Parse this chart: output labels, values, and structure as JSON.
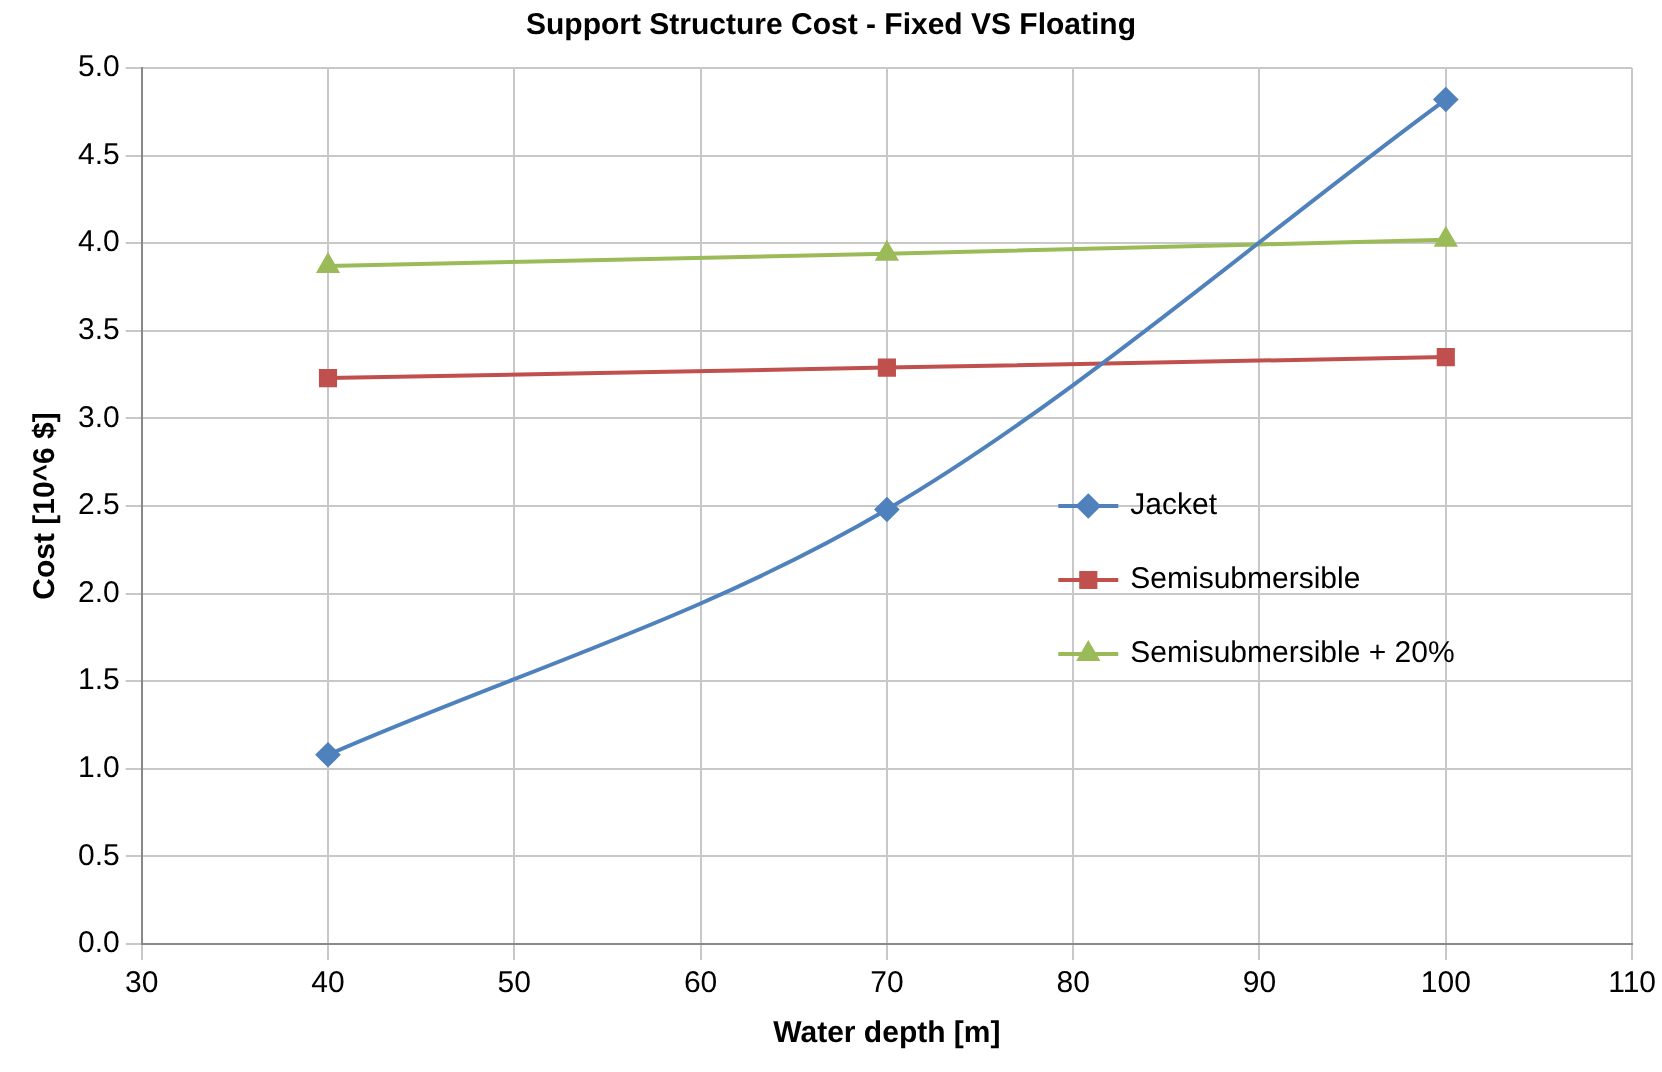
{
  "chart_data": {
    "type": "line",
    "title": "Support Structure Cost - Fixed VS Floating",
    "xlabel": "Water depth [m]",
    "ylabel": "Cost [10^6 $]",
    "x": [
      40,
      70,
      100
    ],
    "series": [
      {
        "name": "Jacket",
        "color": "#4f81bd",
        "values": [
          1.08,
          2.48,
          4.82
        ],
        "marker": "diamond"
      },
      {
        "name": "Semisubmersible",
        "color": "#c0504d",
        "values": [
          3.23,
          3.29,
          3.35
        ],
        "marker": "square"
      },
      {
        "name": "Semisubmersible + 20%",
        "color": "#9bbb59",
        "values": [
          3.87,
          3.94,
          4.02
        ],
        "marker": "triangle"
      }
    ],
    "xlim": [
      30,
      110
    ],
    "xticks": [
      30,
      40,
      50,
      60,
      70,
      80,
      90,
      100,
      110
    ],
    "ylim": [
      0,
      5
    ],
    "yticks": [
      {
        "value": 0,
        "label": "0.0"
      },
      {
        "value": 0.5,
        "label": "0.5"
      },
      {
        "value": 1,
        "label": "1.0"
      },
      {
        "value": 1.5,
        "label": "1.5"
      },
      {
        "value": 2,
        "label": "2.0"
      },
      {
        "value": 2.5,
        "label": "2.5"
      },
      {
        "value": 3,
        "label": "3.0"
      },
      {
        "value": 3.5,
        "label": "3.5"
      },
      {
        "value": 4,
        "label": "4.0"
      },
      {
        "value": 4.5,
        "label": "4.5"
      },
      {
        "value": 5,
        "label": "5.0"
      }
    ],
    "grid": true,
    "legend": "right",
    "line_style": "solid"
  }
}
